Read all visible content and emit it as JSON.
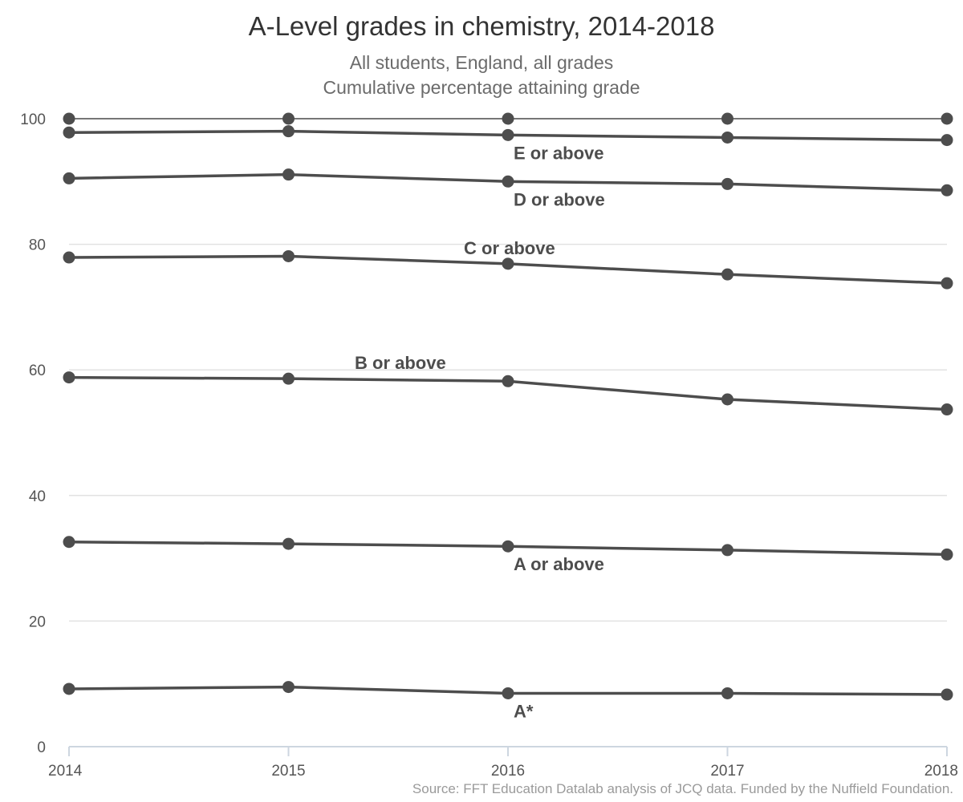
{
  "chart_data": {
    "type": "line",
    "title": "A-Level grades in chemistry, 2014-2018",
    "subtitle": [
      "All students, England, all grades",
      "Cumulative percentage attaining grade"
    ],
    "xlabel": "",
    "ylabel": "",
    "x": [
      "2014",
      "2015",
      "2016",
      "2017",
      "2018"
    ],
    "ylim": [
      0,
      100
    ],
    "yticks": [
      0,
      20,
      40,
      60,
      80,
      100
    ],
    "grid": true,
    "legend": "none",
    "series": [
      {
        "name": "A*",
        "values": [
          9.2,
          9.5,
          8.5,
          8.5,
          8.3
        ]
      },
      {
        "name": "A or above",
        "values": [
          32.6,
          32.3,
          31.9,
          31.3,
          30.6
        ]
      },
      {
        "name": "B or above",
        "values": [
          58.8,
          58.6,
          58.2,
          55.3,
          53.7
        ]
      },
      {
        "name": "C or above",
        "values": [
          77.9,
          78.1,
          76.9,
          75.2,
          73.8
        ]
      },
      {
        "name": "D or above",
        "values": [
          90.5,
          91.1,
          90.0,
          89.6,
          88.6
        ]
      },
      {
        "name": "E or above",
        "values": [
          97.8,
          98.0,
          97.4,
          97.0,
          96.6
        ]
      },
      {
        "name": "",
        "values": [
          100,
          100,
          100,
          100,
          100
        ]
      }
    ],
    "source": "Source: FFT Education Datalab analysis of JCQ data. Funded by the Nuffield Foundation.",
    "colors": {
      "line": "#4d4d4d",
      "grid": "#e2e2e2",
      "axis": "#cdd6e0"
    }
  }
}
